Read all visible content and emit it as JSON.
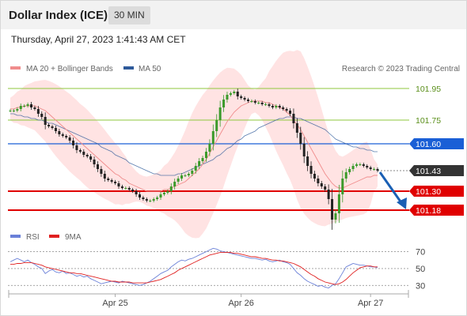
{
  "header": {
    "title": "Dollar Index (ICE)",
    "timeframe": "30 MIN",
    "timestamp": "Thursday, April 27, 2023 1:41:43 AM CET"
  },
  "legend": {
    "ma20_label": "MA 20 + Bollinger Bands",
    "ma50_label": "MA 50",
    "ma20_color": "#f08c8c",
    "ma50_color": "#2e5a9a",
    "copyright": "Research © 2023 Trading Central"
  },
  "rsi_legend": {
    "rsi_label": "RSI",
    "ma9_label": "9MA",
    "rsi_color": "#6a80d8",
    "ma9_color": "#e02020"
  },
  "chart_data": [
    {
      "type": "candlestick",
      "x_ticks": [
        "Apr 25",
        "Apr 26",
        "Apr 27"
      ],
      "levels": [
        {
          "value": 101.95,
          "label": "101.95",
          "kind": "resistance",
          "color": "#8fc73e"
        },
        {
          "value": 101.75,
          "label": "101.75",
          "kind": "resistance",
          "color": "#8fc73e"
        },
        {
          "value": 101.6,
          "label": "101.60",
          "kind": "pivot",
          "color": "#1a5fd6"
        },
        {
          "value": 101.43,
          "label": "101.43",
          "kind": "last",
          "color": "#333333"
        },
        {
          "value": 101.3,
          "label": "101.30",
          "kind": "support",
          "color": "#e00000"
        },
        {
          "value": 101.18,
          "label": "101.18",
          "kind": "support",
          "color": "#e00000"
        }
      ],
      "ylim": [
        101.09,
        102.09
      ],
      "closes": [
        101.81,
        101.81,
        101.82,
        101.84,
        101.84,
        101.85,
        101.83,
        101.82,
        101.79,
        101.77,
        101.72,
        101.71,
        101.7,
        101.68,
        101.66,
        101.65,
        101.64,
        101.62,
        101.59,
        101.56,
        101.55,
        101.53,
        101.52,
        101.5,
        101.47,
        101.44,
        101.41,
        101.38,
        101.37,
        101.36,
        101.35,
        101.33,
        101.32,
        101.32,
        101.31,
        101.3,
        101.28,
        101.26,
        101.25,
        101.24,
        101.24,
        101.25,
        101.26,
        101.28,
        101.29,
        101.3,
        101.33,
        101.36,
        101.38,
        101.4,
        101.4,
        101.41,
        101.43,
        101.46,
        101.49,
        101.51,
        101.55,
        101.6,
        101.68,
        101.75,
        101.83,
        101.88,
        101.91,
        101.92,
        101.93,
        101.9,
        101.89,
        101.88,
        101.87,
        101.87,
        101.86,
        101.86,
        101.85,
        101.85,
        101.84,
        101.83,
        101.84,
        101.83,
        101.82,
        101.81,
        101.79,
        101.73,
        101.67,
        101.6,
        101.52,
        101.46,
        101.41,
        101.38,
        101.35,
        101.33,
        101.31,
        101.25,
        101.12,
        101.16,
        101.28,
        101.38,
        101.42,
        101.44,
        101.46,
        101.47,
        101.47,
        101.46,
        101.45,
        101.44,
        101.44,
        101.43
      ],
      "ma20": [
        101.82,
        101.82,
        101.83,
        101.83,
        101.84,
        101.84,
        101.84,
        101.84,
        101.83,
        101.82,
        101.81,
        101.79,
        101.77,
        101.75,
        101.73,
        101.71,
        101.69,
        101.67,
        101.65,
        101.63,
        101.61,
        101.59,
        101.57,
        101.55,
        101.53,
        101.51,
        101.49,
        101.47,
        101.45,
        101.43,
        101.41,
        101.4,
        101.38,
        101.37,
        101.35,
        101.34,
        101.33,
        101.32,
        101.31,
        101.3,
        101.3,
        101.3,
        101.3,
        101.3,
        101.31,
        101.31,
        101.32,
        101.33,
        101.34,
        101.35,
        101.36,
        101.38,
        101.4,
        101.42,
        101.44,
        101.47,
        101.5,
        101.54,
        101.58,
        101.62,
        101.66,
        101.7,
        101.74,
        101.77,
        101.8,
        101.82,
        101.84,
        101.85,
        101.86,
        101.87,
        101.87,
        101.87,
        101.87,
        101.86,
        101.86,
        101.85,
        101.84,
        101.83,
        101.82,
        101.8,
        101.78,
        101.75,
        101.72,
        101.69,
        101.65,
        101.61,
        101.57,
        101.53,
        101.49,
        101.45,
        101.41,
        101.38,
        101.35,
        101.33,
        101.32,
        101.32,
        101.33,
        101.34,
        101.35,
        101.36,
        101.37,
        101.38,
        101.39,
        101.39,
        101.4,
        101.4
      ],
      "ma50": [
        101.79,
        101.79,
        101.78,
        101.78,
        101.77,
        101.77,
        101.76,
        101.76,
        101.75,
        101.75,
        101.74,
        101.73,
        101.73,
        101.72,
        101.71,
        101.7,
        101.69,
        101.68,
        101.67,
        101.66,
        101.65,
        101.64,
        101.63,
        101.62,
        101.61,
        101.6,
        101.58,
        101.57,
        101.56,
        101.55,
        101.53,
        101.52,
        101.51,
        101.5,
        101.48,
        101.47,
        101.46,
        101.45,
        101.44,
        101.43,
        101.42,
        101.41,
        101.41,
        101.4,
        101.4,
        101.4,
        101.4,
        101.4,
        101.41,
        101.41,
        101.42,
        101.43,
        101.44,
        101.45,
        101.46,
        101.47,
        101.48,
        101.49,
        101.5,
        101.52,
        101.53,
        101.55,
        101.57,
        101.58,
        101.6,
        101.62,
        101.63,
        101.65,
        101.66,
        101.67,
        101.68,
        101.7,
        101.71,
        101.72,
        101.73,
        101.74,
        101.75,
        101.76,
        101.76,
        101.77,
        101.77,
        101.77,
        101.76,
        101.76,
        101.75,
        101.74,
        101.73,
        101.72,
        101.71,
        101.7,
        101.69,
        101.67,
        101.65,
        101.63,
        101.62,
        101.61,
        101.6,
        101.59,
        101.58,
        101.58,
        101.57,
        101.57,
        101.56,
        101.56,
        101.55,
        101.55
      ]
    },
    {
      "type": "line",
      "name": "RSI",
      "levels": [
        70,
        50,
        30
      ],
      "ylim": [
        20,
        78
      ],
      "rsi": [
        58,
        60,
        62,
        60,
        58,
        60,
        57,
        55,
        52,
        50,
        44,
        47,
        49,
        46,
        45,
        47,
        44,
        45,
        43,
        41,
        42,
        40,
        41,
        38,
        36,
        34,
        32,
        33,
        34,
        35,
        34,
        33,
        35,
        34,
        33,
        32,
        31,
        30,
        31,
        33,
        35,
        38,
        41,
        44,
        46,
        48,
        52,
        55,
        58,
        60,
        59,
        61,
        62,
        64,
        66,
        68,
        70,
        72,
        74,
        73,
        71,
        70,
        69,
        68,
        67,
        66,
        65,
        64,
        63,
        62,
        62,
        61,
        60,
        61,
        59,
        58,
        59,
        60,
        58,
        57,
        55,
        50,
        45,
        42,
        38,
        35,
        33,
        31,
        29,
        30,
        28,
        27,
        30,
        32,
        38,
        45,
        52,
        54,
        56,
        55,
        54,
        54,
        53,
        52,
        52,
        51
      ],
      "ma9": [
        55,
        55,
        56,
        56,
        57,
        57,
        57,
        56,
        55,
        54,
        52,
        51,
        50,
        49,
        48,
        47,
        46,
        45,
        45,
        44,
        44,
        43,
        42,
        41,
        40,
        39,
        38,
        37,
        36,
        35,
        35,
        34,
        34,
        34,
        34,
        33,
        33,
        33,
        33,
        33,
        34,
        35,
        36,
        37,
        39,
        41,
        43,
        45,
        48,
        50,
        52,
        54,
        56,
        58,
        60,
        62,
        64,
        66,
        67,
        68,
        69,
        69,
        69,
        69,
        68,
        68,
        67,
        66,
        65,
        64,
        64,
        63,
        62,
        62,
        61,
        60,
        60,
        59,
        59,
        58,
        57,
        56,
        54,
        52,
        49,
        46,
        43,
        41,
        38,
        36,
        34,
        33,
        32,
        31,
        32,
        34,
        37,
        41,
        45,
        48,
        51,
        52,
        53,
        53,
        52,
        52
      ]
    }
  ]
}
